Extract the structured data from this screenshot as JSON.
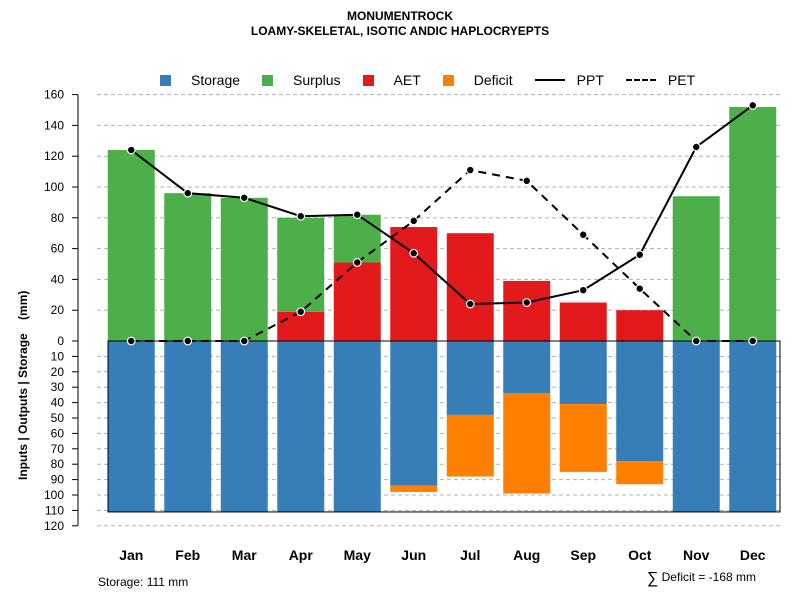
{
  "chart_data": {
    "type": "bar",
    "title": "MONUMENTROCK",
    "subtitle": "LOAMY-SKELETAL, ISOTIC ANDIC HAPLOCRYEPTS",
    "ylabel": "Inputs | Outputs | Storage    (mm)",
    "ylim_upper": [
      0,
      160
    ],
    "ylim_lower": [
      0,
      120
    ],
    "y_ticks_upper": [
      "0",
      "20",
      "40",
      "60",
      "80",
      "100",
      "120",
      "140",
      "160"
    ],
    "y_ticks_lower": [
      "10",
      "20",
      "30",
      "40",
      "50",
      "60",
      "70",
      "80",
      "90",
      "100",
      "110",
      "120"
    ],
    "categories": [
      "Jan",
      "Feb",
      "Mar",
      "Apr",
      "May",
      "Jun",
      "Jul",
      "Aug",
      "Sep",
      "Oct",
      "Nov",
      "Dec"
    ],
    "upper_series": [
      {
        "name": "AET",
        "color": "#e31a1c",
        "values": [
          0,
          0,
          0,
          19,
          51,
          74,
          70,
          39,
          25,
          20,
          0,
          0
        ]
      },
      {
        "name": "Surplus",
        "color": "#4daf4a",
        "values": [
          124,
          96,
          93,
          61,
          31,
          0,
          0,
          0,
          0,
          0,
          94,
          152
        ]
      }
    ],
    "lower_series": [
      {
        "name": "Storage",
        "color": "#377eb8",
        "values": [
          111,
          111,
          111,
          111,
          111,
          94,
          48,
          34,
          41,
          78,
          111,
          111
        ]
      },
      {
        "name": "Deficit",
        "color": "#ff7f00",
        "values": [
          0,
          0,
          0,
          0,
          0,
          4,
          40,
          65,
          44,
          15,
          0,
          0
        ]
      }
    ],
    "lines": [
      {
        "name": "PPT",
        "style": "solid",
        "color": "#000000",
        "values": [
          124,
          96,
          93,
          81,
          82,
          57,
          24,
          25,
          33,
          56,
          126,
          153
        ]
      },
      {
        "name": "PET",
        "style": "dashed",
        "color": "#000000",
        "values": [
          0,
          0,
          0,
          19,
          51,
          78,
          111,
          104,
          69,
          34,
          0,
          0
        ]
      }
    ],
    "storage_capacity": 111
  },
  "legend": [
    {
      "label": "Storage",
      "kind": "swatch",
      "color": "#377eb8"
    },
    {
      "label": "Surplus",
      "kind": "swatch",
      "color": "#4daf4a"
    },
    {
      "label": "AET",
      "kind": "swatch",
      "color": "#e31a1c"
    },
    {
      "label": "Deficit",
      "kind": "swatch",
      "color": "#ff7f00"
    },
    {
      "label": "PPT",
      "kind": "solid"
    },
    {
      "label": "PET",
      "kind": "dashed"
    }
  ],
  "footer": {
    "storage_text": "Storage: 111 mm",
    "sigma": "∑",
    "deficit_text": "Deficit = -168 mm"
  }
}
